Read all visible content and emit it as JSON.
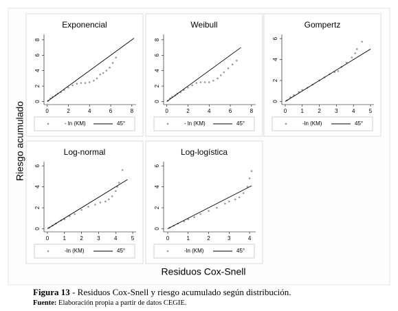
{
  "chart_data": [
    {
      "type": "scatter",
      "title": "Exponencial",
      "xlim": [
        -0.3,
        8.4
      ],
      "ylim": [
        -0.4,
        8.7
      ],
      "xticks": [
        0,
        2,
        4,
        6,
        8
      ],
      "yticks": [
        0,
        2,
        4,
        6,
        8
      ],
      "series": [
        {
          "name": "- ln (KM)",
          "mode": "points",
          "color": "#999999",
          "x": [
            0.1,
            0.3,
            0.5,
            0.8,
            1.0,
            1.3,
            1.6,
            2.0,
            2.4,
            2.8,
            3.2,
            3.6,
            4.0,
            4.4,
            4.7,
            5.0,
            5.3,
            5.6,
            5.9,
            6.2,
            6.5
          ],
          "values": [
            0.1,
            0.4,
            0.6,
            0.8,
            1.0,
            1.2,
            1.5,
            1.8,
            2.1,
            2.3,
            2.4,
            2.4,
            2.5,
            2.7,
            3.0,
            3.5,
            3.7,
            4.0,
            4.4,
            5.0,
            5.7
          ]
        },
        {
          "name": "45°",
          "mode": "line",
          "color": "#000000",
          "x": [
            0,
            8.2
          ],
          "values": [
            0,
            8.2
          ]
        }
      ]
    },
    {
      "type": "scatter",
      "title": "Weibull",
      "xlim": [
        -0.3,
        8.4
      ],
      "ylim": [
        -0.4,
        8.7
      ],
      "xticks": [
        0,
        2,
        4,
        6,
        8
      ],
      "yticks": [
        0,
        2,
        4,
        6,
        8
      ],
      "series": [
        {
          "name": "- ln (KM)",
          "mode": "points",
          "color": "#999999",
          "x": [
            0.1,
            0.3,
            0.5,
            0.8,
            1.0,
            1.3,
            1.6,
            2.0,
            2.4,
            2.8,
            3.2,
            3.6,
            4.0,
            4.4,
            4.8,
            5.1,
            5.4,
            5.8,
            6.2,
            6.6
          ],
          "values": [
            0.1,
            0.4,
            0.6,
            0.8,
            1.0,
            1.2,
            1.5,
            1.8,
            2.1,
            2.4,
            2.5,
            2.5,
            2.5,
            2.7,
            3.0,
            3.4,
            3.8,
            4.3,
            4.8,
            5.3
          ]
        },
        {
          "name": "45°",
          "mode": "line",
          "color": "#000000",
          "x": [
            0,
            7
          ],
          "values": [
            0,
            7
          ]
        }
      ]
    },
    {
      "type": "scatter",
      "title": "Gompertz",
      "xlim": [
        -0.2,
        5.2
      ],
      "ylim": [
        -0.3,
        6.4
      ],
      "xticks": [
        0,
        1,
        2,
        3,
        4,
        5
      ],
      "yticks": [
        0,
        2,
        4,
        6
      ],
      "series": [
        {
          "name": "-ln (KM)",
          "mode": "points",
          "color": "#999999",
          "x": [
            0.1,
            0.3,
            0.5,
            0.8,
            1.0,
            1.3,
            1.6,
            2.0,
            2.3,
            2.6,
            2.9,
            3.1,
            3.3,
            3.6,
            3.9,
            4.1,
            4.2,
            4.5
          ],
          "values": [
            0.1,
            0.4,
            0.6,
            0.9,
            1.1,
            1.3,
            1.6,
            2.0,
            2.3,
            2.6,
            2.8,
            2.9,
            3.3,
            3.7,
            4.2,
            4.6,
            5.0,
            5.7
          ]
        },
        {
          "name": "45°",
          "mode": "line",
          "color": "#000000",
          "x": [
            0,
            5
          ],
          "values": [
            0,
            5
          ]
        }
      ]
    },
    {
      "type": "scatter",
      "title": "Log-normal",
      "xlim": [
        -0.2,
        5.2
      ],
      "ylim": [
        -0.3,
        6.4
      ],
      "xticks": [
        0,
        1,
        2,
        3,
        4,
        5
      ],
      "yticks": [
        0,
        2,
        4,
        6
      ],
      "series": [
        {
          "name": "-ln (KM)",
          "mode": "points",
          "color": "#999999",
          "x": [
            0.1,
            0.3,
            0.5,
            0.8,
            1.0,
            1.3,
            1.6,
            2.0,
            2.4,
            2.8,
            3.1,
            3.4,
            3.6,
            3.8,
            4.0,
            4.1,
            4.2,
            4.4
          ],
          "values": [
            0.1,
            0.3,
            0.5,
            0.8,
            0.9,
            1.2,
            1.4,
            1.8,
            2.1,
            2.3,
            2.5,
            2.6,
            2.8,
            3.1,
            3.6,
            4.0,
            4.4,
            5.6
          ]
        },
        {
          "name": "45°",
          "mode": "line",
          "color": "#000000",
          "x": [
            0,
            4.7
          ],
          "values": [
            0,
            4.7
          ]
        }
      ]
    },
    {
      "type": "scatter",
      "title": "Log-logística",
      "xlim": [
        -0.2,
        4.3
      ],
      "ylim": [
        -0.3,
        6.4
      ],
      "xticks": [
        0,
        1,
        2,
        3,
        4
      ],
      "yticks": [
        0,
        2,
        4,
        6
      ],
      "series": [
        {
          "name": "-ln (KM)",
          "mode": "points",
          "color": "#999999",
          "x": [
            0.1,
            0.3,
            0.5,
            0.8,
            1.0,
            1.3,
            1.6,
            2.0,
            2.4,
            2.8,
            3.0,
            3.3,
            3.5,
            3.7,
            3.9,
            4.0,
            4.1
          ],
          "values": [
            0.1,
            0.3,
            0.5,
            0.7,
            0.9,
            1.1,
            1.4,
            1.7,
            2.0,
            2.4,
            2.6,
            2.8,
            3.0,
            3.4,
            4.0,
            4.8,
            5.5
          ]
        },
        {
          "name": "45°",
          "mode": "line",
          "color": "#000000",
          "x": [
            0,
            4.1
          ],
          "values": [
            0,
            4.1
          ]
        }
      ]
    }
  ],
  "figure": {
    "y_label": "Riesgo acumulado",
    "x_label": "Residuos Cox-Snell"
  },
  "caption": {
    "label": "Figura 13",
    "text": " - Residuos Cox-Snell y riesgo acumulado según distribución.",
    "source_label": "Fuente:",
    "source_text": " Elaboración propia a partir de datos CEGIE."
  }
}
